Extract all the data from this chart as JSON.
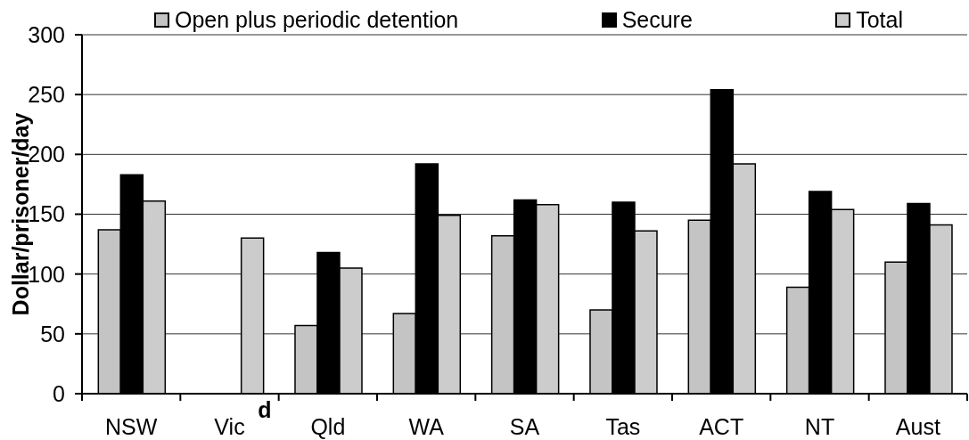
{
  "chart_data": {
    "type": "bar",
    "categories": [
      "NSW",
      "Vic",
      "Qld",
      "WA",
      "SA",
      "Tas",
      "ACT",
      "NT",
      "Aust"
    ],
    "series": [
      {
        "name": "Open plus periodic detention",
        "color": "#c4c4c4",
        "values": [
          137,
          null,
          57,
          67,
          132,
          70,
          145,
          89,
          110
        ]
      },
      {
        "name": "Secure",
        "color": "#000000",
        "values": [
          183,
          null,
          118,
          192,
          162,
          160,
          254,
          169,
          159
        ]
      },
      {
        "name": "Total",
        "color": "#cccccc",
        "values": [
          161,
          130,
          105,
          149,
          158,
          136,
          192,
          154,
          141
        ]
      }
    ],
    "ylabel": "Dollar/prisoner/day",
    "ylim": [
      0,
      300
    ],
    "yticks": [
      0,
      50,
      100,
      150,
      200,
      250,
      300
    ],
    "grid": "y",
    "legend": "top",
    "annotations": [
      "d"
    ]
  }
}
